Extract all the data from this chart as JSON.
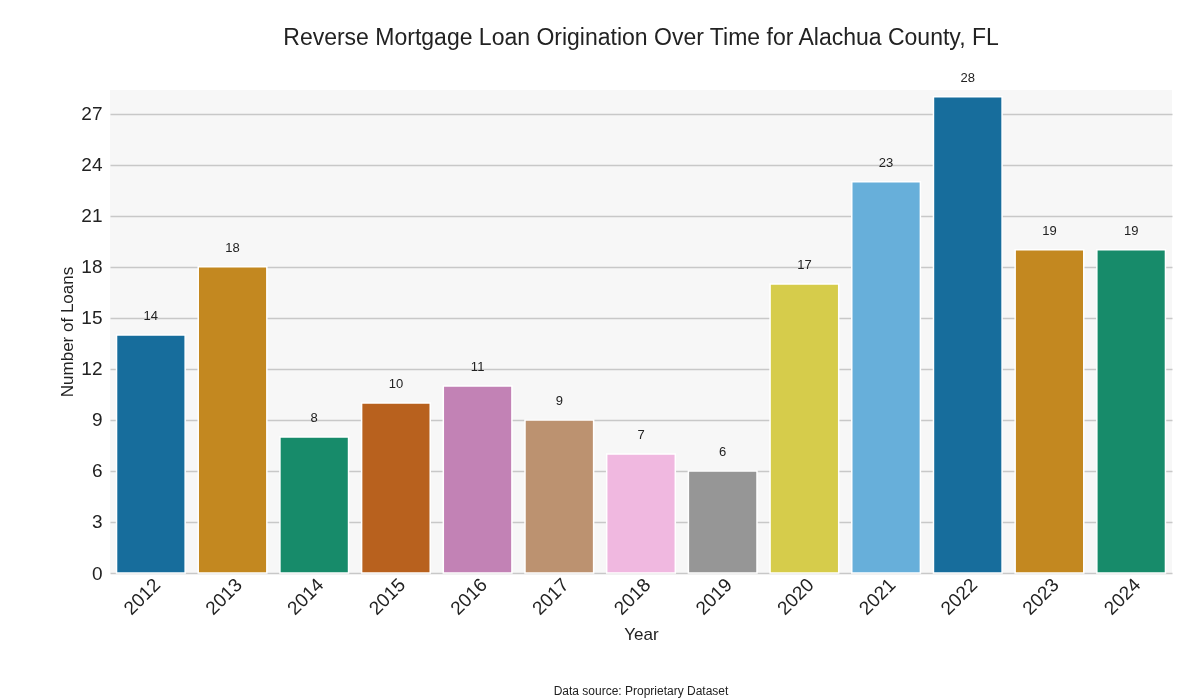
{
  "chart_data": {
    "type": "bar",
    "title": "Reverse Mortgage Loan Origination Over Time for Alachua County, FL",
    "xlabel": "Year",
    "ylabel": "Number of Loans",
    "categories": [
      "2012",
      "2013",
      "2014",
      "2015",
      "2016",
      "2017",
      "2018",
      "2019",
      "2020",
      "2021",
      "2022",
      "2023",
      "2024"
    ],
    "values": [
      14,
      18,
      8,
      10,
      11,
      9,
      7,
      6,
      17,
      23,
      28,
      19,
      19
    ],
    "colors": [
      "#176d9c",
      "#c38820",
      "#178b6a",
      "#b8611e",
      "#c282b5",
      "#bc9270",
      "#f0b8e0",
      "#969696",
      "#d6cc4b",
      "#67afda",
      "#176d9c",
      "#c38820",
      "#178b6a"
    ],
    "ylim": [
      0,
      28.4
    ],
    "yticks": [
      0,
      3,
      6,
      9,
      12,
      15,
      18,
      21,
      24,
      27
    ],
    "grid": "y",
    "data_labels": true,
    "annotations": [
      "Data source: Proprietary Dataset"
    ]
  }
}
